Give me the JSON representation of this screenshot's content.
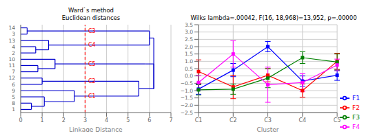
{
  "chart_data": [
    {
      "type": "dendrogram",
      "title": "Ward`s method",
      "subtitle": "Euclidean distances",
      "xlabel": "Linkage Distance",
      "categories": [
        "1",
        "8",
        "5",
        "9",
        "6",
        "12",
        "7",
        "11",
        "10",
        "2",
        "4",
        "13",
        "3",
        "14"
      ],
      "color": "#0000CD",
      "xlim": [
        0,
        7
      ],
      "xticks": [
        0,
        1,
        2,
        3,
        4,
        5,
        6,
        7
      ],
      "ylim": [
        -0.5,
        13.5
      ],
      "grid": "x",
      "segments": [
        {
          "y1": 0,
          "y2": 0,
          "x1": 0,
          "x2": 0.5
        },
        {
          "y1": 1,
          "y2": 1,
          "x1": 0,
          "x2": 0.5
        },
        {
          "y1": 0,
          "y2": 1,
          "x1": 0.5,
          "x2": 0.5
        },
        {
          "y1": 0.5,
          "y2": 0.5,
          "x1": 0.5,
          "x2": 1.1
        },
        {
          "y1": 2,
          "y2": 2,
          "x1": 0,
          "x2": 1.1
        },
        {
          "y1": 0.5,
          "y2": 2,
          "x1": 1.1,
          "x2": 1.1
        },
        {
          "y1": 1.25,
          "y2": 1.25,
          "x1": 1.1,
          "x2": 2.5
        },
        {
          "y1": 3,
          "y2": 3,
          "x1": 0,
          "x2": 2.5
        },
        {
          "y1": 1.25,
          "y2": 3,
          "x1": 2.5,
          "x2": 2.5
        },
        {
          "y1": 2.125,
          "y2": 2.125,
          "x1": 2.5,
          "x2": 5.5
        },
        {
          "y1": 4,
          "y2": 4,
          "x1": 0,
          "x2": 1.0
        },
        {
          "y1": 5,
          "y2": 5,
          "x1": 0,
          "x2": 1.0
        },
        {
          "y1": 4,
          "y2": 5,
          "x1": 1.0,
          "x2": 1.0
        },
        {
          "y1": 4.5,
          "y2": 4.5,
          "x1": 1.0,
          "x2": 5.5
        },
        {
          "y1": 2.125,
          "y2": 4.5,
          "x1": 5.5,
          "x2": 5.5
        },
        {
          "y1": 3.3125,
          "y2": 3.3125,
          "x1": 5.5,
          "x2": 6.2
        },
        {
          "y1": 6,
          "y2": 6,
          "x1": 0,
          "x2": 0.8
        },
        {
          "y1": 7,
          "y2": 7,
          "x1": 0,
          "x2": 0.8
        },
        {
          "y1": 6,
          "y2": 7,
          "x1": 0.8,
          "x2": 0.8
        },
        {
          "y1": 6.5,
          "y2": 6.5,
          "x1": 0.8,
          "x2": 1.6
        },
        {
          "y1": 8,
          "y2": 8,
          "x1": 0,
          "x2": 1.6
        },
        {
          "y1": 6.5,
          "y2": 8,
          "x1": 1.6,
          "x2": 1.6
        },
        {
          "y1": 7.25,
          "y2": 7.25,
          "x1": 1.6,
          "x2": 5.8
        },
        {
          "y1": 9,
          "y2": 9,
          "x1": 0,
          "x2": 0.7
        },
        {
          "y1": 10,
          "y2": 10,
          "x1": 0,
          "x2": 0.7
        },
        {
          "y1": 9,
          "y2": 10,
          "x1": 0.7,
          "x2": 0.7
        },
        {
          "y1": 9.5,
          "y2": 9.5,
          "x1": 0.7,
          "x2": 1.3
        },
        {
          "y1": 11,
          "y2": 11,
          "x1": 0,
          "x2": 1.3
        },
        {
          "y1": 9.5,
          "y2": 11,
          "x1": 1.3,
          "x2": 1.3
        },
        {
          "y1": 10.25,
          "y2": 10.25,
          "x1": 1.3,
          "x2": 6.0
        },
        {
          "y1": 12,
          "y2": 12,
          "x1": 0,
          "x2": 0.3
        },
        {
          "y1": 13,
          "y2": 13,
          "x1": 0,
          "x2": 0.3
        },
        {
          "y1": 12,
          "y2": 13,
          "x1": 0.3,
          "x2": 0.3
        },
        {
          "y1": 12.5,
          "y2": 12.5,
          "x1": 0.3,
          "x2": 6.0
        },
        {
          "y1": 10.25,
          "y2": 12.5,
          "x1": 6.0,
          "x2": 6.0
        },
        {
          "y1": 11.375,
          "y2": 11.375,
          "x1": 6.0,
          "x2": 6.2
        },
        {
          "y1": 3.3125,
          "y2": 11.375,
          "x1": 6.2,
          "x2": 6.2
        },
        {
          "y1": 7.25,
          "y2": 7.25,
          "x1": 5.8,
          "x2": 6.2
        },
        {
          "y1": 7.25,
          "y2": 3.3125,
          "x1": 6.2,
          "x2": 6.2
        }
      ],
      "annotations": [
        {
          "type": "vline",
          "x": 3.0,
          "color": "#FF0000",
          "line_style": "dashed"
        },
        {
          "type": "text",
          "text": "C1",
          "x": 3.05,
          "y": 2.125,
          "color": "#FF0000"
        },
        {
          "type": "text",
          "text": "C2",
          "x": 3.05,
          "y": 4.5,
          "color": "#FF0000"
        },
        {
          "type": "text",
          "text": "C5",
          "x": 3.05,
          "y": 7.25,
          "color": "#FF0000"
        },
        {
          "type": "text",
          "text": "C4",
          "x": 3.05,
          "y": 10.25,
          "color": "#FF0000"
        },
        {
          "type": "text",
          "text": "C3",
          "x": 3.05,
          "y": 12.5,
          "color": "#FF0000"
        }
      ]
    },
    {
      "type": "line",
      "title": "Wilks lambda=.00042, F(16, 18,968)=13,952, p=.00000",
      "xlabel": "Cluster",
      "categories": [
        "C1",
        "C2",
        "C3",
        "C4",
        "C5"
      ],
      "series": [
        {
          "name": "F1",
          "color": "#0000FF",
          "marker": "square",
          "values": [
            -0.9,
            0.4,
            2.0,
            -0.35,
            0.05
          ],
          "errors": [
            0.35,
            0.45,
            0.35,
            0.35,
            0.35
          ]
        },
        {
          "name": "F2",
          "color": "#FF0000",
          "marker": "square",
          "values": [
            0.3,
            -0.75,
            0.05,
            -1.0,
            1.0
          ],
          "errors": [
            0.8,
            0.8,
            0.45,
            0.45,
            0.55
          ]
        },
        {
          "name": "F3",
          "color": "#008000",
          "marker": "square",
          "values": [
            -0.95,
            -0.9,
            -0.15,
            1.25,
            0.95
          ],
          "errors": [
            0.35,
            0.35,
            0.65,
            0.4,
            0.55
          ]
        },
        {
          "name": "F4",
          "color": "#FF00FF",
          "marker": "square",
          "values": [
            -0.45,
            1.5,
            -0.6,
            -0.45,
            0.75
          ],
          "errors": [
            0.5,
            0.9,
            1.2,
            0.6,
            0.4
          ]
        }
      ],
      "ylim": [
        -2.5,
        3.5
      ],
      "yticks": [
        {
          "value": -2.5,
          "label": "−2.5"
        },
        {
          "value": -2.0,
          "label": "−2.0"
        },
        {
          "value": -1.5,
          "label": "−1.5"
        },
        {
          "value": -1.0,
          "label": "−1.0"
        },
        {
          "value": -0.5,
          "label": "−0.5"
        },
        {
          "value": 0.0,
          "label": "0.0"
        },
        {
          "value": 0.5,
          "label": "0.5"
        },
        {
          "value": 1.0,
          "label": "1.0"
        },
        {
          "value": 1.5,
          "label": "1.5"
        },
        {
          "value": 2.0,
          "label": "2.0"
        },
        {
          "value": 2.5,
          "label": "2.5"
        },
        {
          "value": 3.0,
          "label": "3.0"
        },
        {
          "value": 3.5,
          "label": "3.5"
        }
      ],
      "grid": true,
      "legend": "right"
    }
  ]
}
